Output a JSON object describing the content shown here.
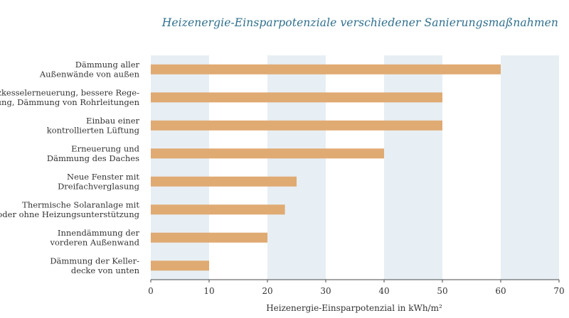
{
  "chart_data": {
    "type": "bar",
    "orientation": "horizontal",
    "title": "Heizenergie-Einsparpotenziale verschiedener Sanierungsmaßnahmen",
    "xlabel": "Heizenergie-Einsparpotenzial in kWh/m²",
    "ylabel": "",
    "xlim": [
      0,
      70
    ],
    "xticks": [
      0,
      10,
      20,
      30,
      40,
      50,
      60,
      70
    ],
    "categories": [
      [
        "Dämmung aller",
        "Außenwände von außen"
      ],
      [
        "Heizkesselerneuerung, bessere Rege-",
        "lung, Dämmung von Rohrleitungen"
      ],
      [
        "Einbau einer",
        "kontrollierten Lüftung"
      ],
      [
        "Erneuerung und",
        "Dämmung des Daches"
      ],
      [
        "Neue Fenster mit",
        "Dreifachverglasung"
      ],
      [
        "Thermische Solaranlage mit",
        "oder ohne Heizungsunterstützung"
      ],
      [
        "Innendämmung der",
        "vorderen Außenwand"
      ],
      [
        "Dämmung der Keller-",
        "decke von unten"
      ]
    ],
    "values": [
      60,
      50,
      50,
      40,
      25,
      23,
      20,
      10
    ],
    "grid": "alternating vertical bands",
    "legend": "none",
    "colors": {
      "bar": "#e0aa73",
      "band": "#e7eff4",
      "title": "#2f6f8e",
      "axis": "#4a4a4a"
    }
  }
}
